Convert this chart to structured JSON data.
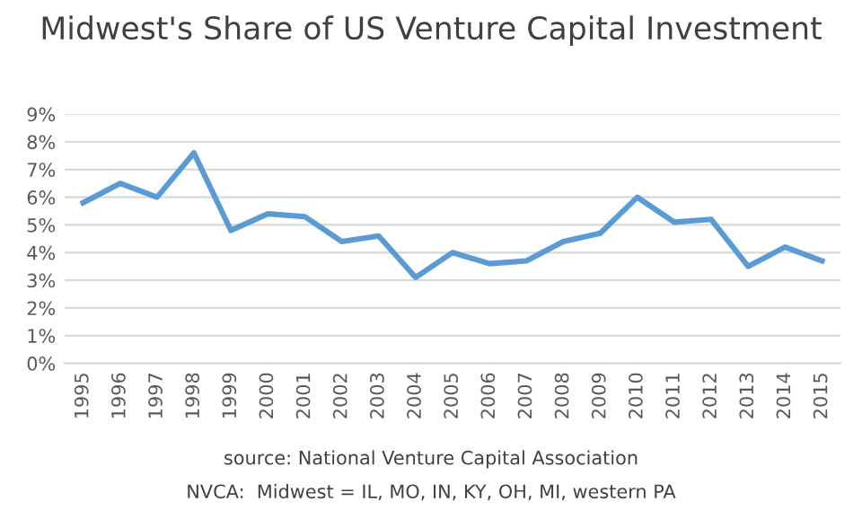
{
  "chart_data": {
    "type": "line",
    "title": "Midwest's Share of US Venture Capital Investment",
    "categories": [
      "1995",
      "1996",
      "1997",
      "1998",
      "1999",
      "2000",
      "2001",
      "2002",
      "2003",
      "2004",
      "2005",
      "2006",
      "2007",
      "2008",
      "2009",
      "2010",
      "2011",
      "2012",
      "2013",
      "2014",
      "2015"
    ],
    "series": [
      {
        "color": "#5b9bd5",
        "values": [
          5.8,
          6.5,
          6.0,
          7.6,
          4.8,
          5.4,
          5.3,
          4.4,
          4.6,
          3.1,
          4.0,
          3.6,
          3.7,
          4.4,
          4.7,
          6.0,
          5.1,
          5.2,
          3.5,
          4.2,
          3.7
        ]
      }
    ],
    "ylim": [
      0,
      9
    ],
    "yticks": [
      {
        "value": 0,
        "label": "0%"
      },
      {
        "value": 1,
        "label": "1%"
      },
      {
        "value": 2,
        "label": "2%"
      },
      {
        "value": 3,
        "label": "3%"
      },
      {
        "value": 4,
        "label": "4%"
      },
      {
        "value": 5,
        "label": "5%"
      },
      {
        "value": 6,
        "label": "6%"
      },
      {
        "value": 7,
        "label": "7%"
      },
      {
        "value": 8,
        "label": "8%"
      },
      {
        "value": 9,
        "label": "9%"
      }
    ],
    "grid": "y",
    "marker": "none",
    "line_style": "solid",
    "annotations": [
      "source: National Venture Capital Association",
      "NVCA:  Midwest = IL, MO, IN, KY, OH, MI, western PA"
    ]
  }
}
